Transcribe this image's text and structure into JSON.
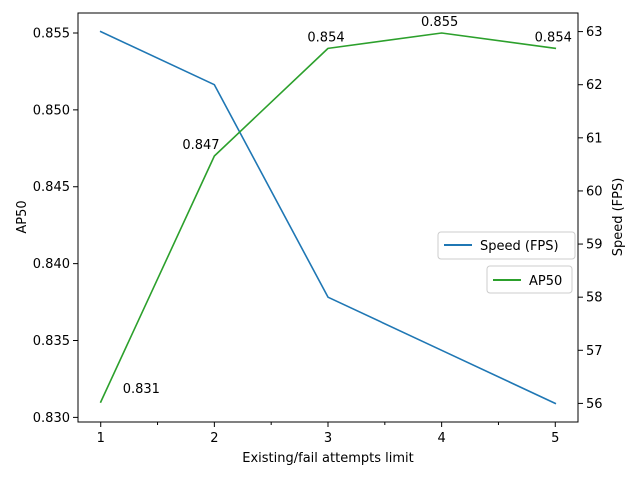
{
  "chart_data": {
    "type": "line",
    "x": [
      1,
      2,
      3,
      4,
      5
    ],
    "xlabel": "Existing/fail attempts limit",
    "xticks": [
      "1",
      "2",
      "3",
      "4",
      "5"
    ],
    "xlim": [
      0.8,
      5.2
    ],
    "left_axis": {
      "label": "AP50",
      "ylim": [
        0.8297,
        0.8563
      ],
      "ticks": [
        0.83,
        0.835,
        0.84,
        0.845,
        0.85,
        0.855
      ],
      "tick_labels": [
        "0.830",
        "0.835",
        "0.840",
        "0.845",
        "0.850",
        "0.855"
      ]
    },
    "right_axis": {
      "label": "Speed (FPS)",
      "ylim": [
        55.65,
        63.35
      ],
      "ticks": [
        56,
        57,
        58,
        59,
        60,
        61,
        62,
        63
      ],
      "tick_labels": [
        "56",
        "57",
        "58",
        "59",
        "60",
        "61",
        "62",
        "63"
      ]
    },
    "series": [
      {
        "name": "Speed (FPS)",
        "axis": "right",
        "color": "#1f77b4",
        "values": [
          63.0,
          62.0,
          58.0,
          57.0,
          56.0
        ]
      },
      {
        "name": "AP50",
        "axis": "left",
        "color": "#2ca02c",
        "values": [
          0.831,
          0.847,
          0.854,
          0.855,
          0.854
        ],
        "data_labels": [
          "0.831",
          "0.847",
          "0.854",
          "0.855",
          "0.854"
        ]
      }
    ],
    "grid": false,
    "legend_placement": "center-right"
  }
}
